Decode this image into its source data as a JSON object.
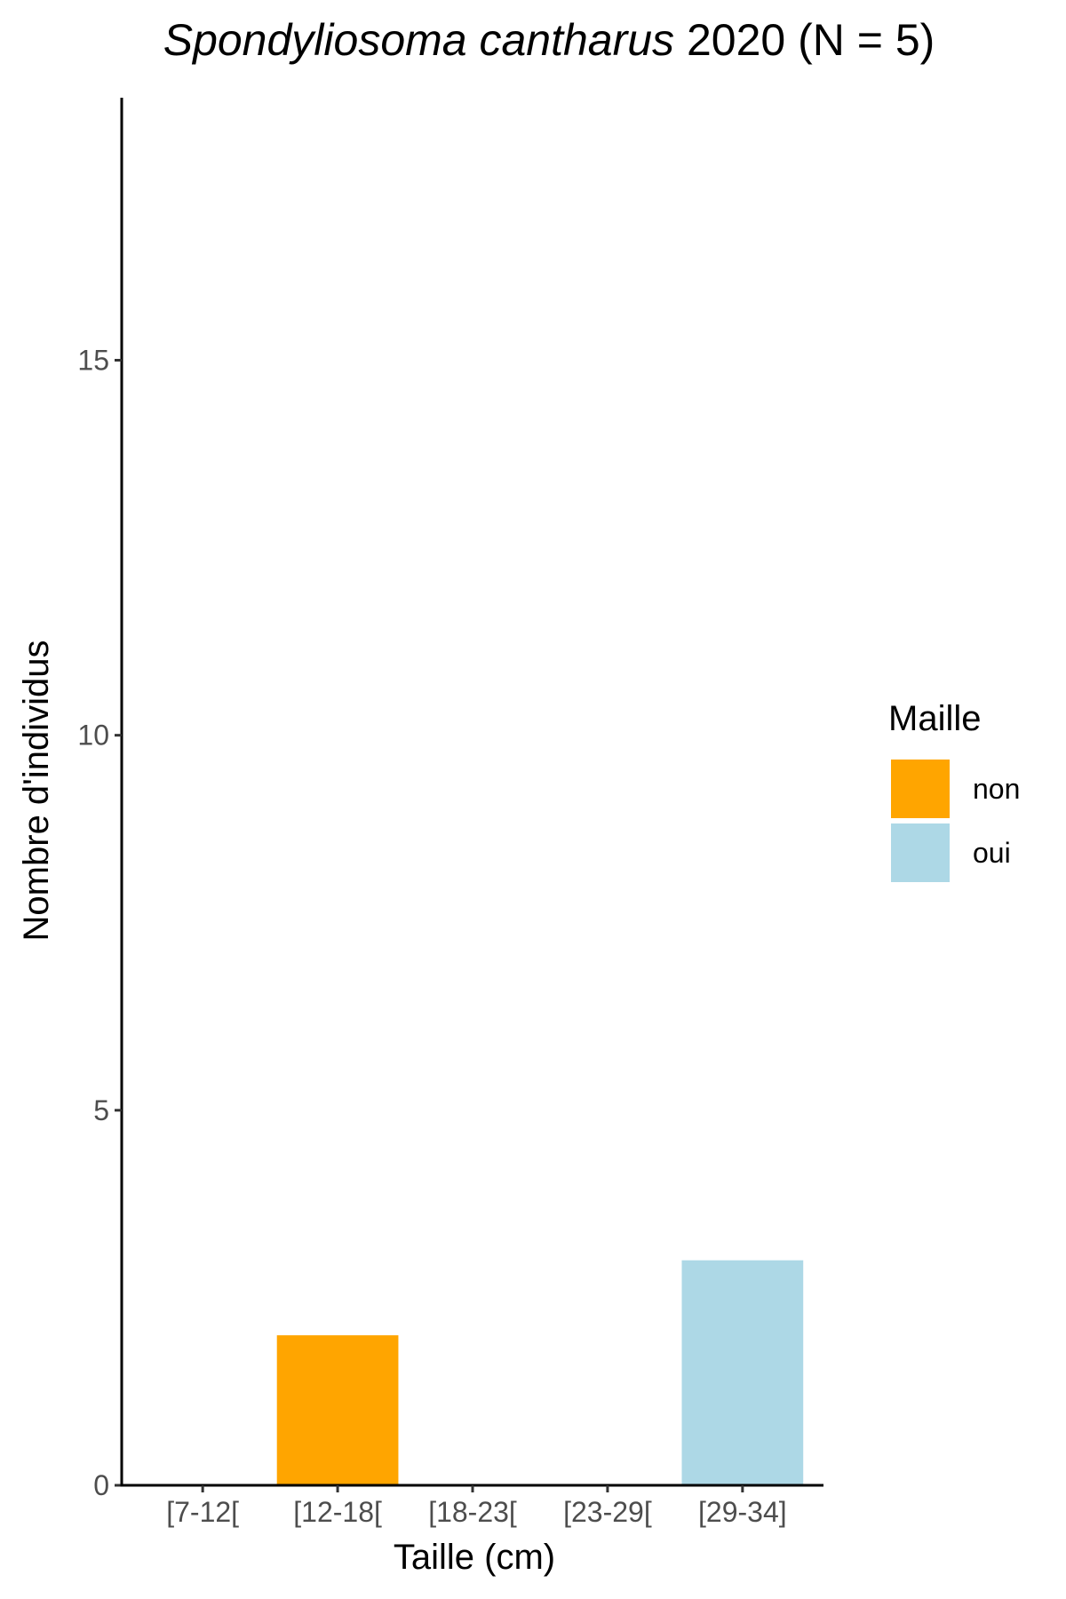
{
  "chart_data": {
    "type": "bar",
    "title_species": "Spondyliosoma cantharus",
    "title_rest": " 2020 (N = 5)",
    "xlabel": "Taille (cm)",
    "ylabel": "Nombre d'individus",
    "categories": [
      "[7-12[",
      "[12-18[",
      "[18-23[",
      "[23-29[",
      "[29-34]"
    ],
    "values": [
      0,
      2,
      0,
      0,
      3
    ],
    "fill_groups": [
      "",
      "non",
      "",
      "",
      "oui"
    ],
    "ylim": [
      0,
      18.5
    ],
    "yticks": [
      0,
      5,
      10,
      15
    ],
    "grid": false,
    "legend": {
      "title": "Maille",
      "position": "right",
      "entries": [
        {
          "label": "non",
          "color": "#FFA500"
        },
        {
          "label": "oui",
          "color": "#ADD8E6"
        }
      ]
    },
    "colors": {
      "non": "#FFA500",
      "oui": "#ADD8E6"
    }
  }
}
